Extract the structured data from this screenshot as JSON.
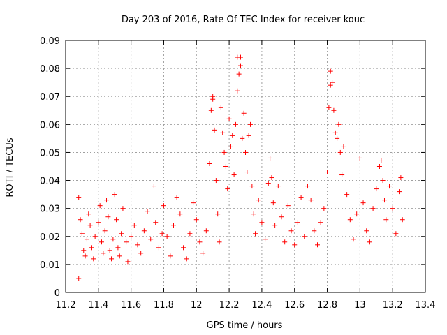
{
  "chart_data": {
    "type": "scatter",
    "title": "Day 203 of 2016, Rate Of TEC Index for receiver kouc",
    "xlabel": "GPS time / hours",
    "ylabel": "ROTI / TECUs",
    "xlim": [
      11.2,
      13.4
    ],
    "ylim": [
      0,
      0.09
    ],
    "xticks": [
      "11.2",
      "11.4",
      "11.6",
      "11.8",
      "12",
      "12.2",
      "12.4",
      "12.6",
      "12.8",
      "13",
      "13.2",
      "13.4"
    ],
    "yticks": [
      "0",
      "0.01",
      "0.02",
      "0.03",
      "0.04",
      "0.05",
      "0.06",
      "0.07",
      "0.08",
      "0.09"
    ],
    "grid": true,
    "legend": "none",
    "marker": "plus",
    "color": "#ff0000",
    "series": [
      {
        "x": [
          11.28,
          11.28,
          11.29,
          11.3,
          11.31,
          11.32,
          11.33,
          11.34,
          11.35,
          11.36,
          11.37,
          11.38,
          11.4,
          11.41,
          11.42,
          11.43,
          11.44,
          11.45,
          11.46,
          11.47,
          11.48,
          11.49,
          11.5,
          11.51,
          11.52,
          11.53,
          11.54,
          11.55,
          11.57,
          11.58,
          11.6,
          11.62,
          11.64,
          11.66,
          11.68,
          11.7,
          11.72,
          11.74,
          11.75,
          11.77,
          11.79,
          11.8,
          11.82,
          11.84,
          11.86,
          11.88,
          11.9,
          11.92,
          11.94,
          11.96,
          11.98,
          12.0,
          12.02,
          12.04,
          12.06,
          12.08,
          12.09,
          12.1,
          12.1,
          12.11,
          12.12,
          12.13,
          12.14,
          12.15,
          12.16,
          12.17,
          12.18,
          12.19,
          12.2,
          12.21,
          12.22,
          12.23,
          12.24,
          12.25,
          12.25,
          12.26,
          12.27,
          12.27,
          12.28,
          12.29,
          12.3,
          12.31,
          12.32,
          12.33,
          12.34,
          12.35,
          12.36,
          12.38,
          12.4,
          12.42,
          12.44,
          12.45,
          12.46,
          12.47,
          12.48,
          12.5,
          12.52,
          12.54,
          12.56,
          12.58,
          12.6,
          12.62,
          12.64,
          12.66,
          12.68,
          12.7,
          12.72,
          12.74,
          12.76,
          12.78,
          12.8,
          12.81,
          12.82,
          12.82,
          12.83,
          12.84,
          12.85,
          12.86,
          12.87,
          12.88,
          12.89,
          12.9,
          12.92,
          12.94,
          12.96,
          12.98,
          13.0,
          13.0,
          13.02,
          13.04,
          13.06,
          13.08,
          13.1,
          13.12,
          13.13,
          13.14,
          13.15,
          13.16,
          13.18,
          13.2,
          13.22,
          13.24,
          13.25,
          13.26
        ],
        "y": [
          0.005,
          0.034,
          0.026,
          0.021,
          0.015,
          0.013,
          0.019,
          0.028,
          0.024,
          0.016,
          0.012,
          0.02,
          0.025,
          0.031,
          0.018,
          0.014,
          0.022,
          0.033,
          0.027,
          0.015,
          0.012,
          0.019,
          0.035,
          0.026,
          0.016,
          0.013,
          0.021,
          0.03,
          0.018,
          0.011,
          0.02,
          0.024,
          0.017,
          0.014,
          0.022,
          0.029,
          0.019,
          0.038,
          0.025,
          0.016,
          0.021,
          0.031,
          0.02,
          0.013,
          0.024,
          0.034,
          0.028,
          0.016,
          0.012,
          0.021,
          0.032,
          0.026,
          0.018,
          0.014,
          0.022,
          0.046,
          0.065,
          0.07,
          0.069,
          0.058,
          0.04,
          0.028,
          0.018,
          0.066,
          0.057,
          0.05,
          0.045,
          0.037,
          0.062,
          0.052,
          0.056,
          0.042,
          0.06,
          0.072,
          0.084,
          0.078,
          0.084,
          0.081,
          0.055,
          0.064,
          0.05,
          0.043,
          0.056,
          0.06,
          0.038,
          0.028,
          0.021,
          0.033,
          0.025,
          0.019,
          0.039,
          0.048,
          0.041,
          0.032,
          0.024,
          0.038,
          0.027,
          0.018,
          0.031,
          0.022,
          0.017,
          0.025,
          0.034,
          0.02,
          0.038,
          0.033,
          0.022,
          0.017,
          0.025,
          0.03,
          0.043,
          0.066,
          0.074,
          0.079,
          0.075,
          0.065,
          0.057,
          0.055,
          0.06,
          0.05,
          0.042,
          0.052,
          0.035,
          0.026,
          0.019,
          0.028,
          0.048,
          0.048,
          0.032,
          0.022,
          0.018,
          0.03,
          0.037,
          0.045,
          0.047,
          0.04,
          0.033,
          0.026,
          0.038,
          0.03,
          0.021,
          0.036,
          0.041,
          0.026
        ]
      }
    ]
  }
}
